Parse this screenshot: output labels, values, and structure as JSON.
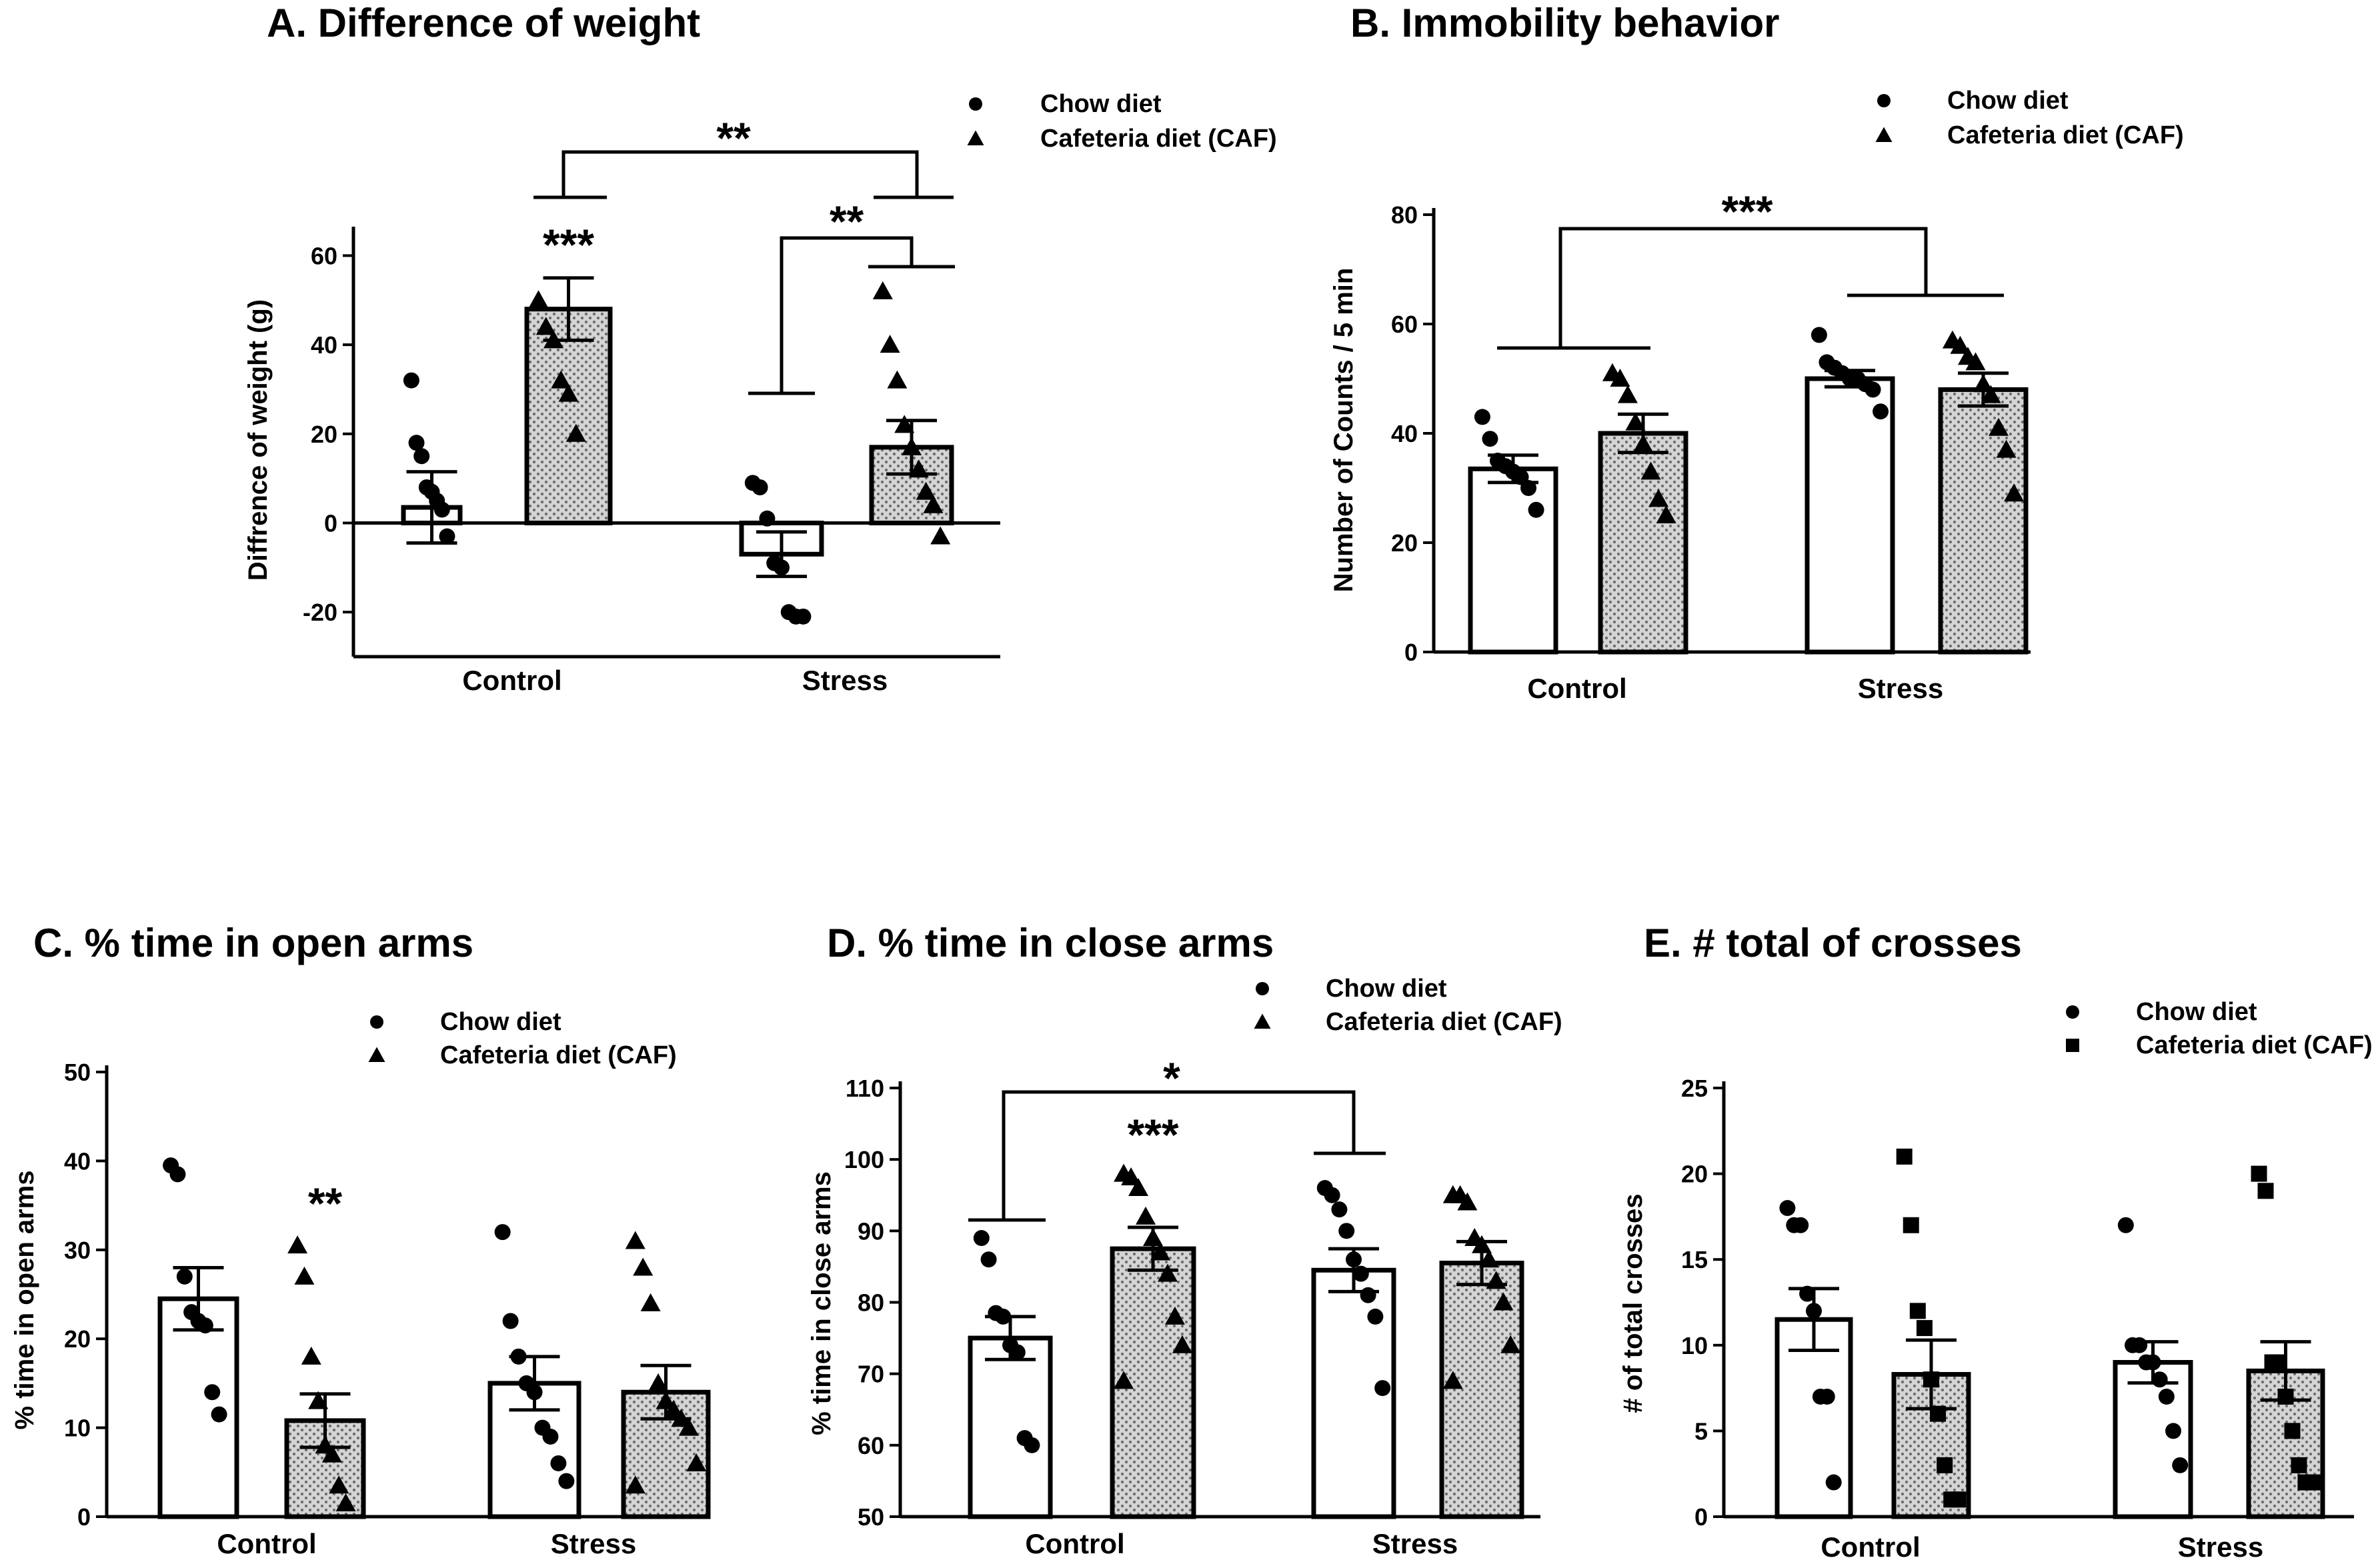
{
  "chart_data": [
    {
      "id": "A",
      "type": "bar",
      "title": "A. Difference of weight",
      "ylabel": "Diffrence of weight (g)",
      "xlabel": "",
      "categories": [
        "Control",
        "Stress"
      ],
      "yticks": [
        -20,
        0,
        20,
        40,
        60
      ],
      "ylim": [
        -30,
        65
      ],
      "grid": false,
      "legend_position": "top-right",
      "series": [
        {
          "name": "Chow diet",
          "marker": "circle",
          "fill": "white",
          "values": [
            3.5,
            -7
          ],
          "errors": [
            8,
            5
          ],
          "points": [
            [
              32,
              18,
              15,
              8,
              7,
              5,
              3,
              -3
            ],
            [
              9,
              8,
              1,
              -9,
              -10,
              -20,
              -21,
              -21
            ]
          ]
        },
        {
          "name": "Cafeteria diet (CAF)",
          "marker": "triangle",
          "fill": "dotted",
          "values": [
            48,
            17
          ],
          "errors": [
            7,
            6
          ],
          "points": [
            [
              50,
              44,
              41,
              32,
              29,
              20
            ],
            [
              52,
              40,
              32,
              22,
              17,
              12,
              7,
              4,
              -3
            ]
          ]
        }
      ],
      "annotations": [
        {
          "text": "***",
          "where": "above Control CAF bar"
        },
        {
          "text": "**",
          "where": "Stress chow vs Stress CAF"
        },
        {
          "text": "**",
          "where": "Control CAF vs Stress CAF"
        }
      ]
    },
    {
      "id": "B",
      "type": "bar",
      "title": "B. Immobility behavior",
      "ylabel": "Number of Counts / 5 min",
      "xlabel": "",
      "categories": [
        "Control",
        "Stress"
      ],
      "yticks": [
        0,
        20,
        40,
        60,
        80
      ],
      "ylim": [
        0,
        80
      ],
      "grid": false,
      "legend_position": "top-right",
      "series": [
        {
          "name": "Chow diet",
          "marker": "circle",
          "fill": "white",
          "values": [
            33.5,
            50
          ],
          "errors": [
            2.5,
            1.5
          ],
          "points": [
            [
              43,
              39,
              35,
              34,
              33,
              32,
              30,
              26
            ],
            [
              58,
              53,
              52,
              51,
              50,
              50,
              49,
              48,
              44
            ]
          ]
        },
        {
          "name": "Cafeteria diet (CAF)",
          "marker": "triangle",
          "fill": "dotted",
          "values": [
            40,
            48
          ],
          "errors": [
            3.5,
            3
          ],
          "points": [
            [
              51,
              50,
              47,
              42,
              38,
              33,
              28,
              25
            ],
            [
              57,
              56,
              54,
              53,
              49,
              47,
              41,
              37,
              29
            ]
          ]
        }
      ],
      "annotations": [
        {
          "text": "***",
          "where": "Control vs Stress"
        }
      ]
    },
    {
      "id": "C",
      "type": "bar",
      "title": "C. % time in open arms",
      "ylabel": "% time in open arms",
      "xlabel": "",
      "categories": [
        "Control",
        "Stress"
      ],
      "yticks": [
        0,
        10,
        20,
        30,
        40,
        50
      ],
      "ylim": [
        0,
        50
      ],
      "grid": false,
      "legend_position": "top-right",
      "series": [
        {
          "name": "Chow diet",
          "marker": "circle",
          "fill": "white",
          "values": [
            24.5,
            15
          ],
          "errors": [
            3.5,
            3
          ],
          "points": [
            [
              39.5,
              38.5,
              27,
              23,
              22,
              21.5,
              14,
              11.5
            ],
            [
              32,
              22,
              18,
              15,
              14,
              10,
              9,
              6,
              4
            ]
          ]
        },
        {
          "name": "Cafeteria diet (CAF)",
          "marker": "triangle",
          "fill": "dotted",
          "values": [
            10.8,
            14
          ],
          "errors": [
            3,
            3
          ],
          "points": [
            [
              30.5,
              27,
              18,
              13,
              8,
              7,
              3.5,
              1.5
            ],
            [
              31,
              28,
              24,
              15,
              13,
              12,
              11,
              10,
              6,
              3.5
            ]
          ]
        }
      ],
      "annotations": [
        {
          "text": "**",
          "where": "above Control CAF bar"
        }
      ]
    },
    {
      "id": "D",
      "type": "bar",
      "title": "D. % time in close arms",
      "ylabel": "% time in close arms",
      "xlabel": "",
      "categories": [
        "Control",
        "Stress"
      ],
      "yticks": [
        50,
        60,
        70,
        80,
        90,
        100,
        110
      ],
      "ylim": [
        50,
        110
      ],
      "grid": false,
      "legend_position": "top-right",
      "series": [
        {
          "name": "Chow diet",
          "marker": "circle",
          "fill": "white",
          "values": [
            75,
            84.5
          ],
          "errors": [
            3,
            3
          ],
          "points": [
            [
              89,
              86,
              78.5,
              78,
              74,
              73,
              61,
              60
            ],
            [
              96,
              95,
              93,
              90,
              86,
              84,
              81,
              78,
              68
            ]
          ]
        },
        {
          "name": "Cafeteria diet (CAF)",
          "marker": "triangle",
          "fill": "dotted",
          "values": [
            87.5,
            85.5
          ],
          "errors": [
            3,
            3
          ],
          "points": [
            [
              98,
              97.5,
              96,
              92,
              89,
              87,
              84,
              78,
              74,
              69
            ],
            [
              95,
              95,
              94,
              89,
              88,
              86,
              83,
              80,
              74,
              69
            ]
          ]
        }
      ],
      "annotations": [
        {
          "text": "***",
          "where": "above Control CAF bar"
        },
        {
          "text": "*",
          "where": "Control vs Stress"
        }
      ]
    },
    {
      "id": "E",
      "type": "bar",
      "title": "E. # total of crosses",
      "ylabel": "# of total crosses",
      "xlabel": "",
      "categories": [
        "Control",
        "Stress"
      ],
      "yticks": [
        0,
        5,
        10,
        15,
        20,
        25
      ],
      "ylim": [
        0,
        25
      ],
      "grid": false,
      "legend_position": "top-right",
      "series": [
        {
          "name": "Chow diet",
          "marker": "circle",
          "fill": "white",
          "values": [
            11.5,
            9
          ],
          "errors": [
            1.8,
            1.2
          ],
          "points": [
            [
              18,
              17,
              17,
              13,
              12,
              7,
              7,
              2
            ],
            [
              17,
              10,
              10,
              9,
              9,
              8,
              7,
              5,
              3
            ]
          ]
        },
        {
          "name": "Cafeteria diet (CAF)",
          "marker": "square",
          "fill": "dotted",
          "values": [
            8.3,
            8.5
          ],
          "errors": [
            2,
            1.7
          ],
          "points": [
            [
              21,
              17,
              12,
              11,
              8,
              6,
              3,
              1,
              1
            ],
            [
              20,
              19,
              9,
              9,
              7,
              5,
              3,
              2,
              2
            ]
          ]
        }
      ],
      "annotations": []
    }
  ]
}
